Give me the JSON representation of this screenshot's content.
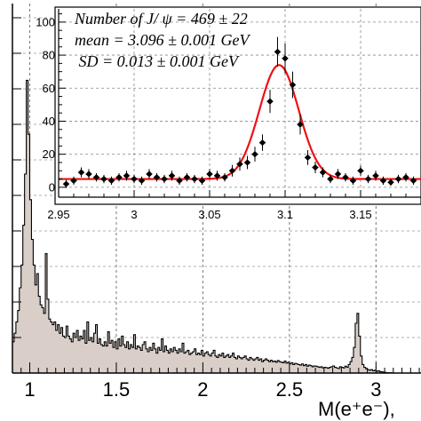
{
  "chart_data": [
    {
      "type": "histogram",
      "xlabel": "M(e⁺e⁻),",
      "xticks": [
        "1",
        "1.5",
        "2",
        "2.5",
        "3"
      ],
      "xtick_values": [
        1.0,
        1.5,
        2.0,
        2.5,
        3.0
      ],
      "xlim": [
        0.9,
        3.26
      ],
      "ylim": [
        0,
        1300
      ],
      "grid": true,
      "fill_color": "#d9cfc8",
      "line_color": "#000000",
      "bin_width": 0.01,
      "x_start": 0.9,
      "values": [
        110,
        140,
        180,
        220,
        300,
        380,
        520,
        700,
        1030,
        840,
        610,
        470,
        380,
        310,
        350,
        270,
        240,
        230,
        210,
        420,
        260,
        190,
        180,
        170,
        180,
        150,
        170,
        140,
        160,
        130,
        125,
        165,
        130,
        120,
        110,
        140,
        125,
        150,
        115,
        130,
        120,
        150,
        105,
        180,
        115,
        125,
        110,
        140,
        170,
        105,
        120,
        100,
        95,
        110,
        95,
        145,
        105,
        115,
        90,
        110,
        85,
        120,
        95,
        130,
        100,
        90,
        110,
        85,
        100,
        90,
        135,
        85,
        95,
        90,
        80,
        100,
        110,
        85,
        75,
        90,
        80,
        105,
        85,
        70,
        90,
        80,
        120,
        75,
        95,
        80,
        70,
        85,
        75,
        90,
        80,
        70,
        85,
        75,
        105,
        70,
        75,
        80,
        65,
        70,
        75,
        85,
        65,
        70,
        65,
        80,
        60,
        70,
        75,
        65,
        60,
        70,
        80,
        60,
        55,
        65,
        60,
        70,
        55,
        60,
        65,
        55,
        60,
        70,
        55,
        50,
        60,
        55,
        50,
        55,
        60,
        50,
        45,
        55,
        50,
        45,
        50,
        55,
        45,
        50,
        40,
        45,
        50,
        45,
        40,
        45,
        40,
        42,
        38,
        44,
        40,
        38,
        36,
        42,
        35,
        38,
        32,
        36,
        30,
        34,
        32,
        30,
        28,
        32,
        26,
        30,
        24,
        28,
        26,
        22,
        25,
        24,
        22,
        20,
        22,
        18,
        20,
        19,
        17,
        20,
        22,
        25,
        20,
        18,
        16,
        22,
        20,
        18,
        24,
        20,
        30,
        40,
        55,
        90,
        175,
        210,
        130,
        60,
        30,
        20,
        15,
        12,
        10,
        12,
        8,
        10,
        6,
        8,
        5,
        4,
        3,
        2,
        1,
        1,
        1,
        0,
        0,
        0,
        0,
        0,
        0,
        0,
        0,
        0,
        0,
        0,
        0
      ]
    },
    {
      "type": "scatter",
      "inset": true,
      "xlim": [
        2.95,
        3.19
      ],
      "ylim": [
        -6,
        108
      ],
      "xticks": [
        "2.95",
        "3",
        "3.05",
        "3.1",
        "3.15"
      ],
      "xtick_values": [
        2.95,
        3.0,
        3.05,
        3.1,
        3.15
      ],
      "yticks": [
        "0",
        "20",
        "40",
        "60",
        "80",
        "100"
      ],
      "ytick_values": [
        0,
        20,
        40,
        60,
        80,
        100
      ],
      "grid": true,
      "annotations": [
        "Number of J/ ψ = 469 ± 22",
        "mean = 3.096 ± 0.001 GeV",
        " SD = 0.013 ± 0.001 GeV"
      ],
      "points": {
        "x": [
          2.955,
          2.96,
          2.965,
          2.97,
          2.975,
          2.98,
          2.985,
          2.99,
          2.995,
          3.0,
          3.005,
          3.01,
          3.015,
          3.02,
          3.025,
          3.03,
          3.035,
          3.04,
          3.045,
          3.05,
          3.055,
          3.06,
          3.065,
          3.07,
          3.075,
          3.08,
          3.085,
          3.09,
          3.095,
          3.1,
          3.105,
          3.11,
          3.115,
          3.12,
          3.125,
          3.13,
          3.135,
          3.14,
          3.145,
          3.15,
          3.155,
          3.16,
          3.165,
          3.17,
          3.175,
          3.18,
          3.185
        ],
        "y": [
          2,
          4,
          9,
          8,
          6,
          5,
          4,
          6,
          7,
          5,
          4,
          8,
          6,
          5,
          7,
          4,
          6,
          5,
          4,
          8,
          7,
          6,
          10,
          14,
          15,
          20,
          27,
          52,
          82,
          78,
          62,
          38,
          18,
          12,
          9,
          5,
          8,
          6,
          4,
          10,
          5,
          7,
          4,
          3,
          5,
          6,
          4
        ],
        "err": [
          2.5,
          2.5,
          3,
          3,
          2.5,
          2.5,
          2.5,
          2.5,
          3,
          2.5,
          2.5,
          3,
          2.5,
          2.5,
          3,
          2.5,
          2.5,
          2.5,
          2.5,
          3,
          3,
          2.5,
          3.5,
          4,
          4,
          4.5,
          5,
          7,
          9,
          9,
          8,
          6,
          4.5,
          3.5,
          3,
          2.5,
          3,
          2.5,
          2.5,
          3,
          2.5,
          3,
          2.5,
          2,
          2.5,
          2.5,
          2.5
        ],
        "color": "#000000"
      },
      "fit": {
        "color": "#ee1111",
        "baseline": 5,
        "amplitude": 69,
        "mean": 3.096,
        "sd": 0.013
      }
    }
  ]
}
